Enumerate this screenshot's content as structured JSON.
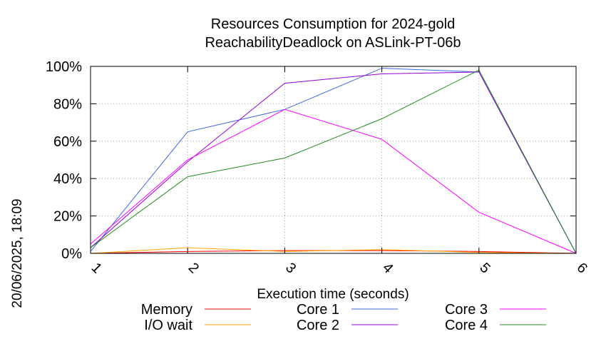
{
  "chart_data": {
    "type": "line",
    "title": "Resources Consumption for 2024-gold",
    "subtitle": "ReachabilityDeadlock on ASLink-PT-06b",
    "xlabel": "Execution time (seconds)",
    "ylabel": "",
    "side_label": "20/06/2025, 18:09",
    "x": [
      1,
      2,
      3,
      4,
      5,
      6
    ],
    "xlim": [
      1,
      6
    ],
    "ylim": [
      0,
      100
    ],
    "x_ticks": [
      "1",
      "2",
      "3",
      "4",
      "5",
      "6"
    ],
    "y_ticks": [
      "0%",
      "20%",
      "40%",
      "60%",
      "80%",
      "100%"
    ],
    "y_tick_values": [
      0,
      20,
      40,
      60,
      80,
      100
    ],
    "grid": true,
    "legend_position": "bottom",
    "series": [
      {
        "name": "Memory",
        "color": "#ff0000",
        "values": [
          0,
          1,
          1.5,
          1.5,
          1,
          0
        ]
      },
      {
        "name": "I/O wait",
        "color": "#ffa500",
        "values": [
          0,
          3,
          1,
          2,
          0.5,
          0
        ]
      },
      {
        "name": "Core 1",
        "color": "#4169e1",
        "values": [
          1,
          65,
          77,
          99,
          97,
          0
        ]
      },
      {
        "name": "Core 2",
        "color": "#9400d3",
        "values": [
          3,
          49,
          91,
          96,
          97,
          0
        ]
      },
      {
        "name": "Core 3",
        "color": "#ff00ff",
        "values": [
          5,
          50,
          77,
          61,
          22,
          0
        ]
      },
      {
        "name": "Core 4",
        "color": "#228b22",
        "values": [
          3,
          41,
          51,
          72,
          98,
          0
        ]
      }
    ]
  }
}
